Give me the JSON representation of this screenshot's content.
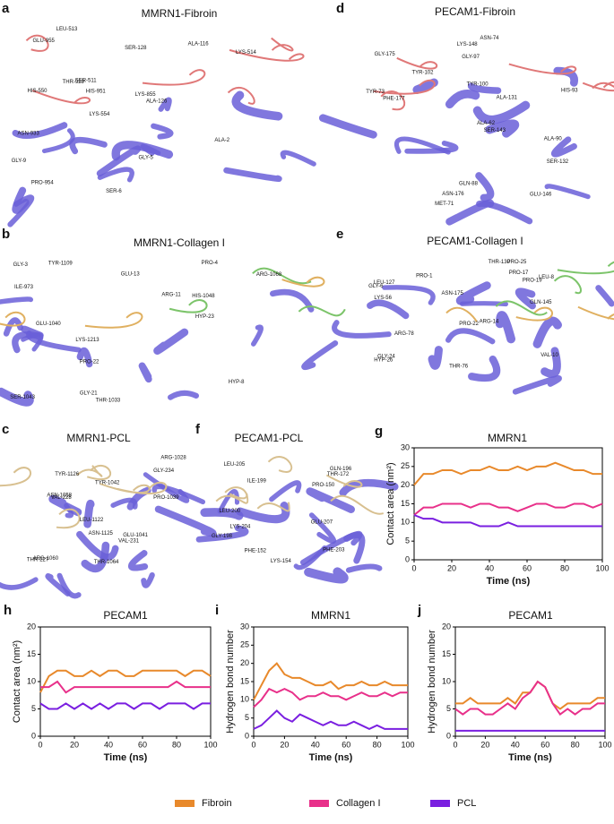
{
  "panels": [
    {
      "letter": "a",
      "title": "MMRN1-Fibroin",
      "labels": [
        "LYS-554",
        "HIS-550",
        "SER-511",
        "LYS-514",
        "LEU-513",
        "ALA-116",
        "SER-128",
        "ALA-126",
        "GLY-9",
        "GLY-5",
        "SER-6",
        "ALA-2",
        "HIS-951",
        "PRO-954",
        "GLU-955",
        "THR-929",
        "ASN-933",
        "LYS-855"
      ]
    },
    {
      "letter": "d",
      "title": "PECAM1-Fibroin",
      "labels": [
        "SER-143",
        "PHE-177",
        "SER-132",
        "ALA-62",
        "ALA-131",
        "GLY-175",
        "ASN-176",
        "GLU-146",
        "GLN-88",
        "LYS-148",
        "HIS-93",
        "TYR-102",
        "TYR-73",
        "MET-71",
        "ALA-90",
        "ASN-74",
        "GLY-97",
        "TYR-100"
      ]
    },
    {
      "letter": "b",
      "title": "MMRN1-Collagen I",
      "labels": [
        "GLU-1040",
        "GLU-13",
        "ARG-11",
        "SER-1043",
        "HIS-1048",
        "GLY-21",
        "PRO-22",
        "HYP-23",
        "ARG-1068",
        "TYR-1109",
        "HYP-8",
        "PRO-4",
        "ILE-973",
        "THR-1033",
        "GLY-3",
        "LYS-1213"
      ]
    },
    {
      "letter": "e",
      "title": "PECAM1-Collagen I",
      "labels": [
        "GLY-6",
        "LEU-8",
        "HYP-26",
        "VAL-10",
        "PRO-22",
        "PRO-17",
        "PRO-19",
        "GLY-24",
        "PRO-25",
        "ARG-78",
        "LYS-56",
        "THR-76",
        "ARG-14",
        "GLN-145",
        "PRO-1",
        "LEU-127",
        "ASN-175",
        "THR-130"
      ]
    },
    {
      "letter": "c",
      "title": "MMRN1-PCL",
      "labels": [
        "GLY-234",
        "GLU-1041",
        "THR-227",
        "VAL-231",
        "PRO-1039",
        "TYR-1042",
        "ARG-1060",
        "VAL-228",
        "ASN-1058",
        "THR-1064",
        "ARG-1028",
        "LEU-1122",
        "TYR-1126",
        "ASN-1125"
      ]
    },
    {
      "letter": "f",
      "title": "PECAM1-PCL",
      "labels": [
        "PHE-203",
        "LEU-200",
        "LYS-204",
        "LEU-205",
        "PRO-150",
        "THR-172",
        "ILE-199",
        "GLY-198",
        "PHE-152",
        "GLU-207",
        "GLN-196",
        "LYS-154"
      ]
    }
  ],
  "chart_data": [
    {
      "type": "line",
      "panel": "g",
      "title": "MMRN1",
      "x_label": "Time (ns)",
      "y_label": "Contact area (nm²)",
      "x": [
        0,
        5,
        10,
        15,
        20,
        25,
        30,
        35,
        40,
        45,
        50,
        55,
        60,
        65,
        70,
        75,
        80,
        85,
        90,
        95,
        100
      ],
      "xlim": [
        0,
        100
      ],
      "xticks": [
        0,
        20,
        40,
        60,
        80,
        100
      ],
      "ylim": [
        0,
        30
      ],
      "yticks": [
        0,
        5,
        10,
        15,
        20,
        25,
        30
      ],
      "series": [
        {
          "name": "Fibroin",
          "color": "#e8892b",
          "values": [
            20,
            23,
            23,
            24,
            24,
            23,
            24,
            24,
            25,
            24,
            24,
            25,
            24,
            25,
            25,
            26,
            25,
            24,
            24,
            23,
            23
          ]
        },
        {
          "name": "Collagen I",
          "color": "#e8308a",
          "values": [
            12,
            14,
            14,
            15,
            15,
            15,
            14,
            15,
            15,
            14,
            14,
            13,
            14,
            15,
            15,
            14,
            14,
            15,
            15,
            14,
            15
          ]
        },
        {
          "name": "PCL",
          "color": "#7a1fe0",
          "values": [
            12,
            11,
            11,
            10,
            10,
            10,
            10,
            9,
            9,
            9,
            10,
            9,
            9,
            9,
            9,
            9,
            9,
            9,
            9,
            9,
            9
          ]
        }
      ]
    },
    {
      "type": "line",
      "panel": "h",
      "title": "PECAM1",
      "x_label": "Time (ns)",
      "y_label": "Contact area (nm²)",
      "x": [
        0,
        5,
        10,
        15,
        20,
        25,
        30,
        35,
        40,
        45,
        50,
        55,
        60,
        65,
        70,
        75,
        80,
        85,
        90,
        95,
        100
      ],
      "xlim": [
        0,
        100
      ],
      "xticks": [
        0,
        20,
        40,
        60,
        80,
        100
      ],
      "ylim": [
        0,
        20
      ],
      "yticks": [
        0,
        5,
        10,
        15,
        20
      ],
      "series": [
        {
          "name": "Fibroin",
          "color": "#e8892b",
          "values": [
            8,
            11,
            12,
            12,
            11,
            11,
            12,
            11,
            12,
            12,
            11,
            11,
            12,
            12,
            12,
            12,
            12,
            11,
            12,
            12,
            11
          ]
        },
        {
          "name": "Collagen I",
          "color": "#e8308a",
          "values": [
            9,
            9,
            10,
            8,
            9,
            9,
            9,
            9,
            9,
            9,
            9,
            9,
            9,
            9,
            9,
            9,
            10,
            9,
            9,
            9,
            9
          ]
        },
        {
          "name": "PCL",
          "color": "#7a1fe0",
          "values": [
            6,
            5,
            5,
            6,
            5,
            6,
            5,
            6,
            5,
            6,
            6,
            5,
            6,
            6,
            5,
            6,
            6,
            6,
            5,
            6,
            6
          ]
        }
      ]
    },
    {
      "type": "line",
      "panel": "i",
      "title": "MMRN1",
      "x_label": "Time (ns)",
      "y_label": "Hydrogen bond number",
      "x": [
        0,
        5,
        10,
        15,
        20,
        25,
        30,
        35,
        40,
        45,
        50,
        55,
        60,
        65,
        70,
        75,
        80,
        85,
        90,
        95,
        100
      ],
      "xlim": [
        0,
        100
      ],
      "xticks": [
        0,
        20,
        40,
        60,
        80,
        100
      ],
      "ylim": [
        0,
        30
      ],
      "yticks": [
        0,
        5,
        10,
        15,
        20,
        25,
        30
      ],
      "series": [
        {
          "name": "Fibroin",
          "color": "#e8892b",
          "values": [
            10,
            14,
            18,
            20,
            17,
            16,
            16,
            15,
            14,
            14,
            15,
            13,
            14,
            14,
            15,
            14,
            14,
            15,
            14,
            14,
            14
          ]
        },
        {
          "name": "Collagen I",
          "color": "#e8308a",
          "values": [
            8,
            10,
            13,
            12,
            13,
            12,
            10,
            11,
            11,
            12,
            11,
            11,
            10,
            11,
            12,
            11,
            11,
            12,
            11,
            12,
            12
          ]
        },
        {
          "name": "PCL",
          "color": "#7a1fe0",
          "values": [
            2,
            3,
            5,
            7,
            5,
            4,
            6,
            5,
            4,
            3,
            4,
            3,
            3,
            4,
            3,
            2,
            3,
            2,
            2,
            2,
            2
          ]
        }
      ]
    },
    {
      "type": "line",
      "panel": "j",
      "title": "PECAM1",
      "x_label": "Time (ns)",
      "y_label": "Hydrogen bond number",
      "x": [
        0,
        5,
        10,
        15,
        20,
        25,
        30,
        35,
        40,
        45,
        50,
        55,
        60,
        65,
        70,
        75,
        80,
        85,
        90,
        95,
        100
      ],
      "xlim": [
        0,
        100
      ],
      "xticks": [
        0,
        20,
        40,
        60,
        80,
        100
      ],
      "ylim": [
        0,
        20
      ],
      "yticks": [
        0,
        5,
        10,
        15,
        20
      ],
      "series": [
        {
          "name": "Fibroin",
          "color": "#e8892b",
          "values": [
            6,
            6,
            7,
            6,
            6,
            6,
            6,
            7,
            6,
            8,
            8,
            10,
            9,
            6,
            5,
            6,
            6,
            6,
            6,
            7,
            7
          ]
        },
        {
          "name": "Collagen I",
          "color": "#e8308a",
          "values": [
            5,
            4,
            5,
            5,
            4,
            4,
            5,
            6,
            5,
            7,
            8,
            10,
            9,
            6,
            4,
            5,
            4,
            5,
            5,
            6,
            6
          ]
        },
        {
          "name": "PCL",
          "color": "#7a1fe0",
          "values": [
            1,
            1,
            1,
            1,
            1,
            1,
            1,
            1,
            1,
            1,
            1,
            1,
            1,
            1,
            1,
            1,
            1,
            1,
            1,
            1,
            1
          ]
        }
      ]
    }
  ]
}
